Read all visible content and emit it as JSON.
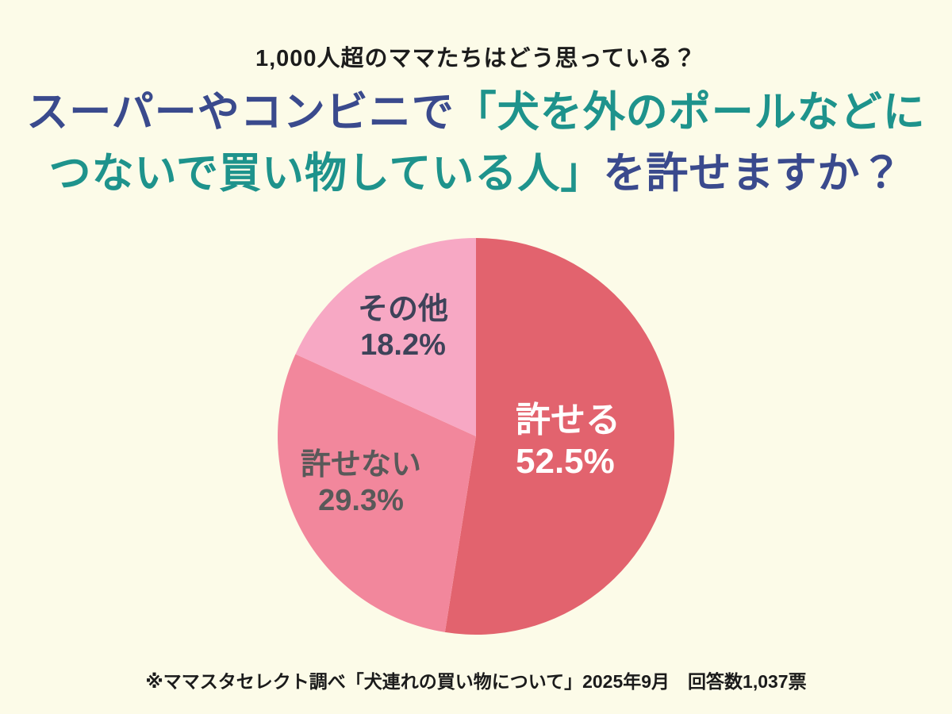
{
  "page": {
    "background": "#FCFBE8"
  },
  "header": {
    "kicker": "1,000人超のママたちはどう思っている？",
    "title_line1_blue": "スーパーやコンビニで",
    "title_line1_teal": "「犬を外のポールなどに",
    "title_line2_teal": "つないで買い物している人」",
    "title_line2_blue": "を許せますか？",
    "title_blue_color": "#3A4A8D",
    "title_teal_color": "#1E938C"
  },
  "chart_data": {
    "type": "pie",
    "title": "スーパーやコンビニで「犬を外のポールなどにつないで買い物している人」を許せますか？",
    "start_angle_deg": 0,
    "direction": "clockwise",
    "total_pct": 100,
    "legend_position": "labels-inside-slices",
    "slices": [
      {
        "label": "許せる",
        "value_pct": 52.5,
        "display": "52.5%",
        "color": "#E2636E",
        "label_color": "#FFFFFF"
      },
      {
        "label": "許せない",
        "value_pct": 29.3,
        "display": "29.3%",
        "color": "#F2879C",
        "label_color": "#595959"
      },
      {
        "label": "その他",
        "value_pct": 18.2,
        "display": "18.2%",
        "color": "#F7A8C4",
        "label_color": "#3E4359"
      }
    ]
  },
  "footnote": "※ママスタセレクト調べ「犬連れの買い物について」2025年9月　回答数1,037票"
}
